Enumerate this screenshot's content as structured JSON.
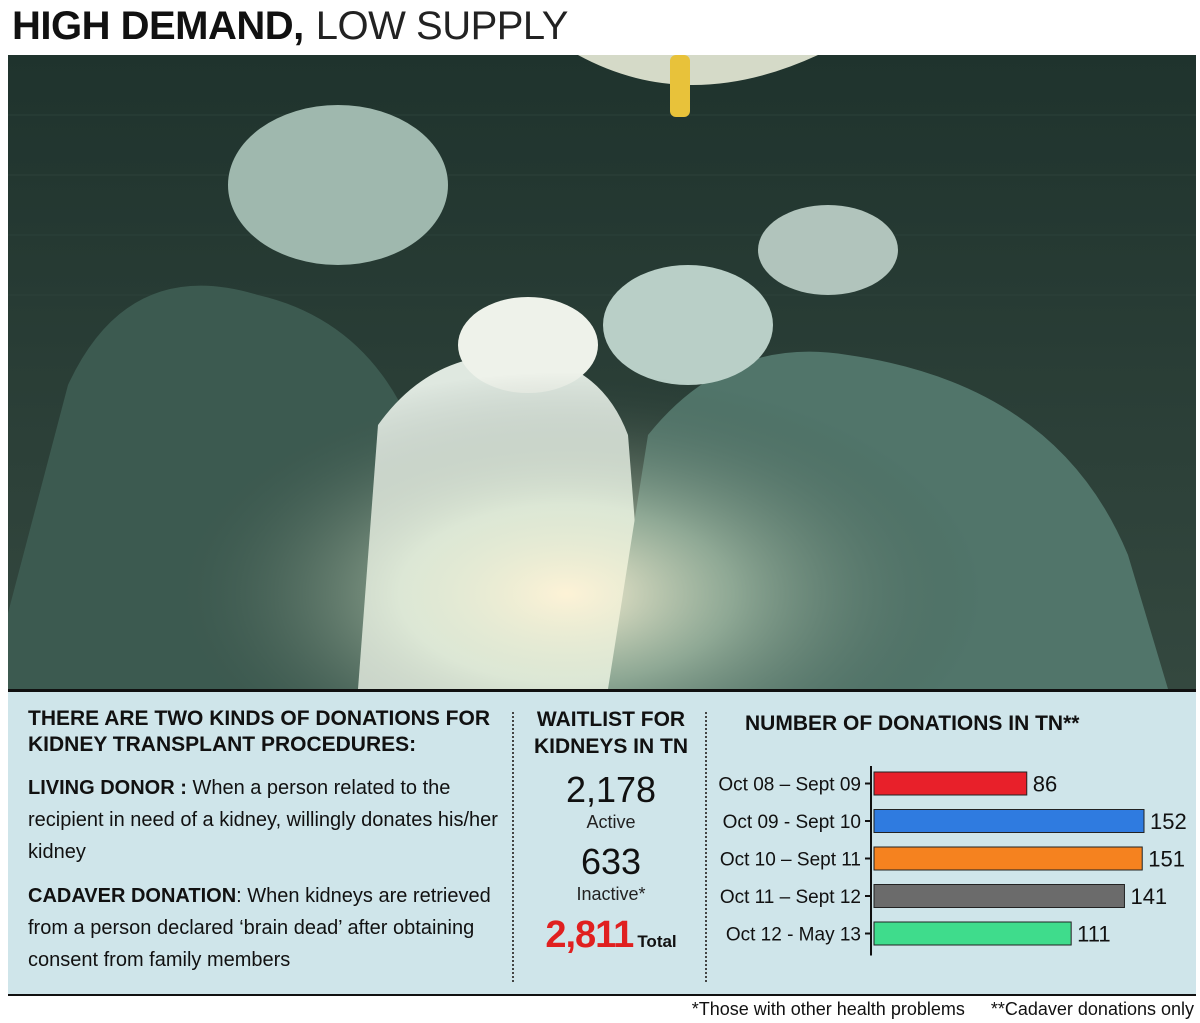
{
  "headline": {
    "bold": "HIGH DEMAND,",
    "light": "LOW SUPPLY"
  },
  "donation_kinds": {
    "title": "THERE ARE TWO KINDS OF DONATIONS FOR KIDNEY TRANSPLANT PROCEDURES:",
    "living_label": "LIVING DONOR :",
    "living_text": "When a person related to the recipient in need of a kidney, willingly donates his/her kidney",
    "cadaver_label": "CADAVER DONATION",
    "cadaver_text": ": When kidneys are retrieved from a person declared ‘brain dead’ after obtaining consent from family members"
  },
  "waitlist": {
    "title": "WAITLIST FOR KIDNEYS IN TN",
    "active_value": "2,178",
    "active_label": "Active",
    "inactive_value": "633",
    "inactive_label": "Inactive*",
    "total_value": "2,811",
    "total_label": "Total"
  },
  "footnotes": {
    "inactive": "*Those with other health problems",
    "cadaver": "**Cadaver donations only"
  },
  "chart_data": {
    "type": "bar",
    "orientation": "horizontal",
    "title": "NUMBER OF DONATIONS IN TN**",
    "categories": [
      "Oct 08 – Sept 09",
      "Oct 09 - Sept 10",
      "Oct 10 – Sept 11",
      "Oct 11 – Sept 12",
      "Oct 12 - May 13"
    ],
    "values": [
      86,
      152,
      151,
      141,
      111
    ],
    "colors": [
      "#e8202a",
      "#2f7be0",
      "#f5821f",
      "#6b6b6b",
      "#3fdc8c"
    ],
    "xlim": [
      0,
      152
    ],
    "grid": false
  },
  "colors": {
    "panel_bg": "#cfe5ea",
    "total_red": "#e02020"
  }
}
